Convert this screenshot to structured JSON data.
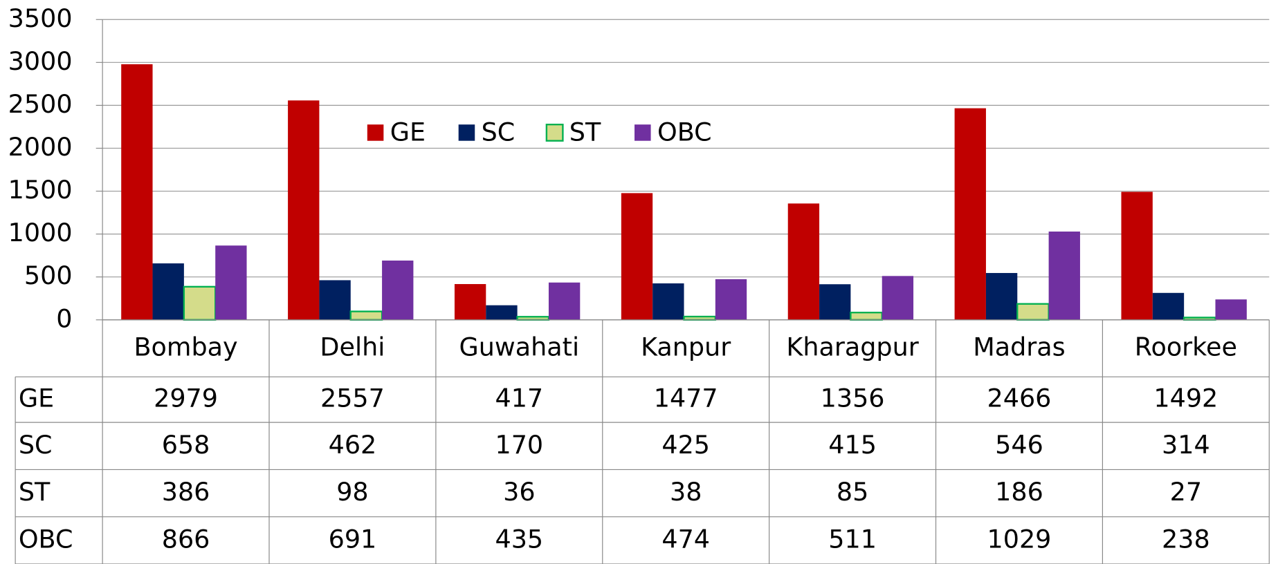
{
  "chart_data": {
    "type": "bar",
    "categories": [
      "Bombay",
      "Delhi",
      "Guwahati",
      "Kanpur",
      "Kharagpur",
      "Madras",
      "Roorkee"
    ],
    "series": [
      {
        "name": "GE",
        "color": "#c00000",
        "values": [
          2979,
          2557,
          417,
          1477,
          1356,
          2466,
          1492
        ]
      },
      {
        "name": "SC",
        "color": "#002060",
        "values": [
          658,
          462,
          170,
          425,
          415,
          546,
          314
        ]
      },
      {
        "name": "ST",
        "color": "#d4dc8a",
        "border": "#00b050",
        "values": [
          386,
          98,
          36,
          38,
          85,
          186,
          27
        ]
      },
      {
        "name": "OBC",
        "color": "#7030a0",
        "values": [
          866,
          691,
          435,
          474,
          511,
          1029,
          238
        ]
      }
    ],
    "ylim": [
      0,
      3500
    ],
    "yticks": [
      0,
      500,
      1000,
      1500,
      2000,
      2500,
      3000,
      3500
    ],
    "grid": true
  }
}
